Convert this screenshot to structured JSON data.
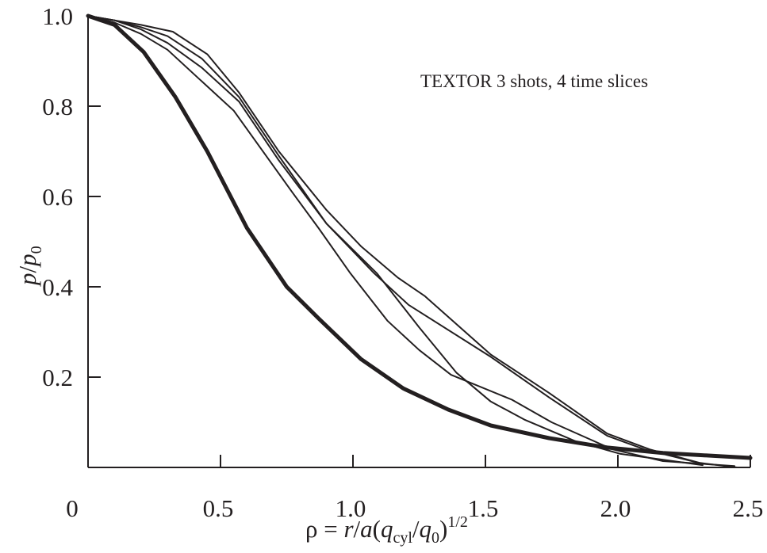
{
  "chart_data": {
    "type": "line",
    "title": "",
    "annotation": "TEXTOR 3 shots, 4 time slices",
    "xlabel": {
      "main": "ρ = ",
      "r": "r",
      "slash": "/",
      "a": "a",
      "open": "(",
      "q1": "q",
      "sub1": "cyl",
      "slash2": "/",
      "q2": "q",
      "sub2": "0",
      "close": ")",
      "sup": "1/2"
    },
    "ylabel": {
      "p": "p",
      "slash": "/",
      "p0": "p",
      "sub": "0"
    },
    "xlim": [
      0,
      2.5
    ],
    "ylim": [
      0,
      1.0
    ],
    "xticks": [
      "0",
      "0.5",
      "1.0",
      "1.5",
      "2.0",
      "2.5"
    ],
    "xtick_values": [
      0,
      0.5,
      1.0,
      1.5,
      2.0,
      2.5
    ],
    "yticks": [
      "0.2",
      "0.4",
      "0.6",
      "0.8",
      "1.0"
    ],
    "ytick_values": [
      0.2,
      0.4,
      0.6,
      0.8,
      1.0
    ],
    "grid": false,
    "line_color": "#231f20",
    "series": [
      {
        "style": "thick",
        "points": [
          [
            0,
            1
          ],
          [
            0.1,
            0.98
          ],
          [
            0.21,
            0.92
          ],
          [
            0.33,
            0.82
          ],
          [
            0.45,
            0.7
          ],
          [
            0.6,
            0.53
          ],
          [
            0.75,
            0.4
          ],
          [
            0.87,
            0.33
          ],
          [
            1.03,
            0.24
          ],
          [
            1.19,
            0.175
          ],
          [
            1.36,
            0.128
          ],
          [
            1.52,
            0.093
          ],
          [
            1.74,
            0.065
          ],
          [
            1.96,
            0.044
          ],
          [
            2.17,
            0.032
          ],
          [
            2.5,
            0.021
          ]
        ]
      },
      {
        "style": "thin",
        "points": [
          [
            0,
            1
          ],
          [
            0.1,
            0.99
          ],
          [
            0.2,
            0.98
          ],
          [
            0.32,
            0.965
          ],
          [
            0.45,
            0.915
          ],
          [
            0.57,
            0.83
          ],
          [
            0.72,
            0.7
          ],
          [
            0.9,
            0.57
          ],
          [
            1.03,
            0.49
          ],
          [
            1.17,
            0.42
          ],
          [
            1.27,
            0.38
          ],
          [
            1.52,
            0.25
          ],
          [
            1.74,
            0.165
          ],
          [
            1.96,
            0.075
          ],
          [
            2.12,
            0.04
          ],
          [
            2.31,
            0.01
          ],
          [
            2.45,
            0
          ]
        ]
      },
      {
        "style": "thin",
        "points": [
          [
            0,
            1
          ],
          [
            0.1,
            0.99
          ],
          [
            0.2,
            0.975
          ],
          [
            0.3,
            0.955
          ],
          [
            0.43,
            0.905
          ],
          [
            0.57,
            0.82
          ],
          [
            0.72,
            0.69
          ],
          [
            0.9,
            0.54
          ],
          [
            1.08,
            0.43
          ],
          [
            1.21,
            0.36
          ],
          [
            1.52,
            0.245
          ],
          [
            1.74,
            0.155
          ],
          [
            1.96,
            0.07
          ],
          [
            2.1,
            0.04
          ],
          [
            2.32,
            0.008
          ]
        ]
      },
      {
        "style": "thin",
        "points": [
          [
            0,
            1
          ],
          [
            0.1,
            0.99
          ],
          [
            0.2,
            0.97
          ],
          [
            0.3,
            0.94
          ],
          [
            0.43,
            0.885
          ],
          [
            0.57,
            0.81
          ],
          [
            0.72,
            0.68
          ],
          [
            0.9,
            0.54
          ],
          [
            1.09,
            0.43
          ],
          [
            1.25,
            0.31
          ],
          [
            1.39,
            0.21
          ],
          [
            1.52,
            0.146
          ],
          [
            1.65,
            0.105
          ],
          [
            1.84,
            0.058
          ],
          [
            2.01,
            0.03
          ],
          [
            2.32,
            0.005
          ]
        ]
      },
      {
        "style": "thin",
        "points": [
          [
            0,
            1
          ],
          [
            0.1,
            0.985
          ],
          [
            0.2,
            0.96
          ],
          [
            0.3,
            0.925
          ],
          [
            0.42,
            0.86
          ],
          [
            0.55,
            0.79
          ],
          [
            0.77,
            0.61
          ],
          [
            0.87,
            0.53
          ],
          [
            0.99,
            0.43
          ],
          [
            1.13,
            0.325
          ],
          [
            1.25,
            0.26
          ],
          [
            1.37,
            0.205
          ],
          [
            1.6,
            0.15
          ],
          [
            1.75,
            0.1
          ],
          [
            1.98,
            0.04
          ],
          [
            2.17,
            0.014
          ],
          [
            2.44,
            0.003
          ]
        ]
      }
    ]
  }
}
